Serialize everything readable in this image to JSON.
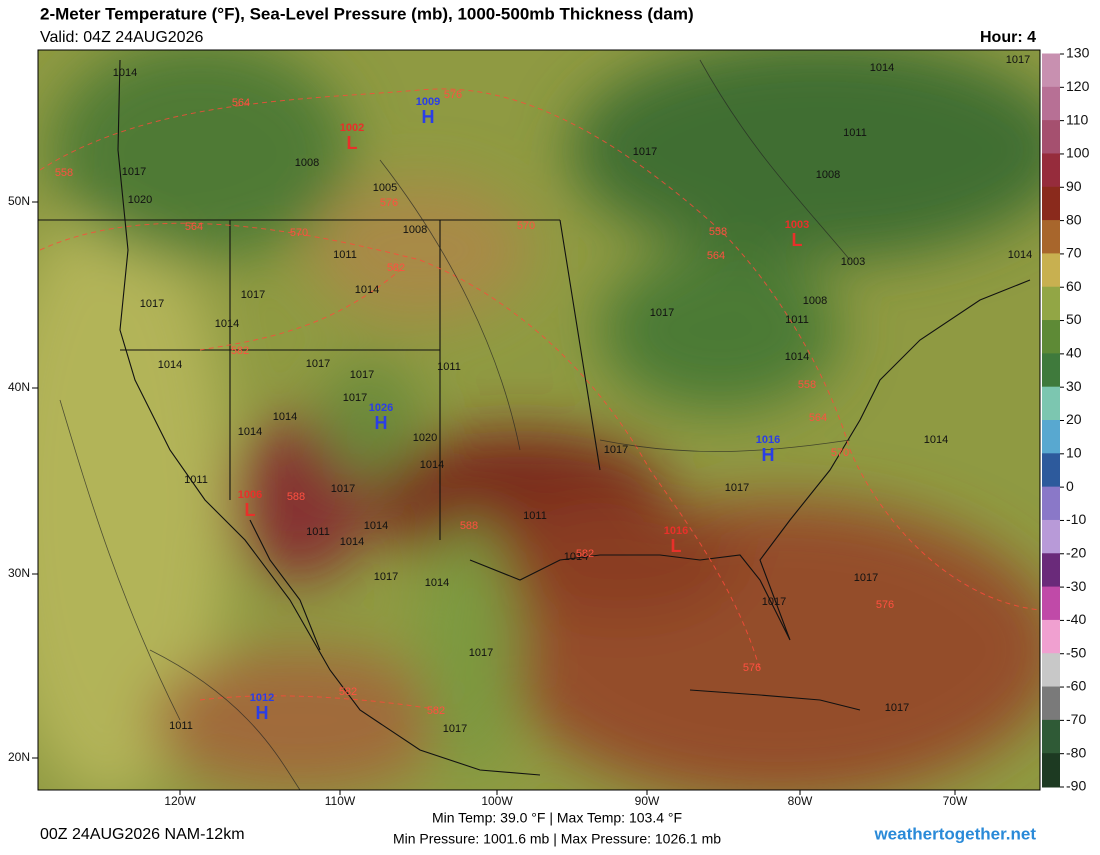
{
  "header": {
    "title": "2-Meter Temperature (°F), Sea-Level Pressure (mb), 1000-500mb Thickness (dam)",
    "valid": "Valid: 04Z 24AUG2026",
    "hour": "Hour: 4"
  },
  "map": {
    "latitude_labels": [
      "50N",
      "40N",
      "30N",
      "20N"
    ],
    "longitude_labels": [
      "120W",
      "110W",
      "100W",
      "90W",
      "80W",
      "70W"
    ],
    "pressure_centers": [
      {
        "symbol": "H",
        "value": 1009
      },
      {
        "symbol": "L",
        "value": 1002
      },
      {
        "symbol": "L",
        "value": 1003
      },
      {
        "symbol": "H",
        "value": 1026
      },
      {
        "symbol": "H",
        "value": 1016
      },
      {
        "symbol": "L",
        "value": 1006
      },
      {
        "symbol": "L",
        "value": 1016
      },
      {
        "symbol": "H",
        "value": 1012
      }
    ],
    "isobar_labels": [
      1014,
      1014,
      1017,
      1008,
      1005,
      1017,
      1011,
      1017,
      1020,
      1008,
      1008,
      1011,
      1003,
      1014,
      1014,
      1017,
      1017,
      1017,
      1014,
      1008,
      1011,
      1014,
      1014,
      1017,
      1011,
      1017,
      1017,
      1014,
      1014,
      1020,
      1017,
      1014,
      1014,
      1011,
      1017,
      1017,
      1011,
      1014,
      1014,
      1011,
      1014,
      1017,
      1014,
      1017,
      1017,
      1017,
      1011,
      1017,
      1017
    ],
    "thickness_labels": [
      564,
      576,
      558,
      576,
      564,
      570,
      570,
      582,
      558,
      564,
      582,
      558,
      564,
      570,
      588,
      588,
      582,
      576,
      576,
      582,
      582
    ]
  },
  "colorbar": {
    "ticks": [
      130,
      120,
      110,
      100,
      90,
      80,
      70,
      60,
      50,
      40,
      30,
      20,
      10,
      0,
      -10,
      -20,
      -30,
      -40,
      -50,
      -60,
      -70,
      -80,
      -90
    ],
    "colors": [
      "#c890b0",
      "#b77095",
      "#a5506f",
      "#962c3c",
      "#8a2a1c",
      "#a8662c",
      "#c8b050",
      "#92a645",
      "#5e8a36",
      "#3f7a3c",
      "#7cc6b0",
      "#58a8d0",
      "#2d5a9c",
      "#8a78c8",
      "#b89ad8",
      "#6a2a7a",
      "#c04aa8",
      "#f0a0d0",
      "#c8c8c8",
      "#7a7a7a",
      "#2f5a36",
      "#1d3a22"
    ]
  },
  "footer": {
    "run": "00Z 24AUG2026 NAM-12km",
    "temperature": "Min Temp:  39.0 °F | Max Temp: 103.4 °F",
    "pressure": "Min Pressure: 1001.6 mb | Max Pressure: 1026.1 mb",
    "site": "weathertogether.net"
  }
}
